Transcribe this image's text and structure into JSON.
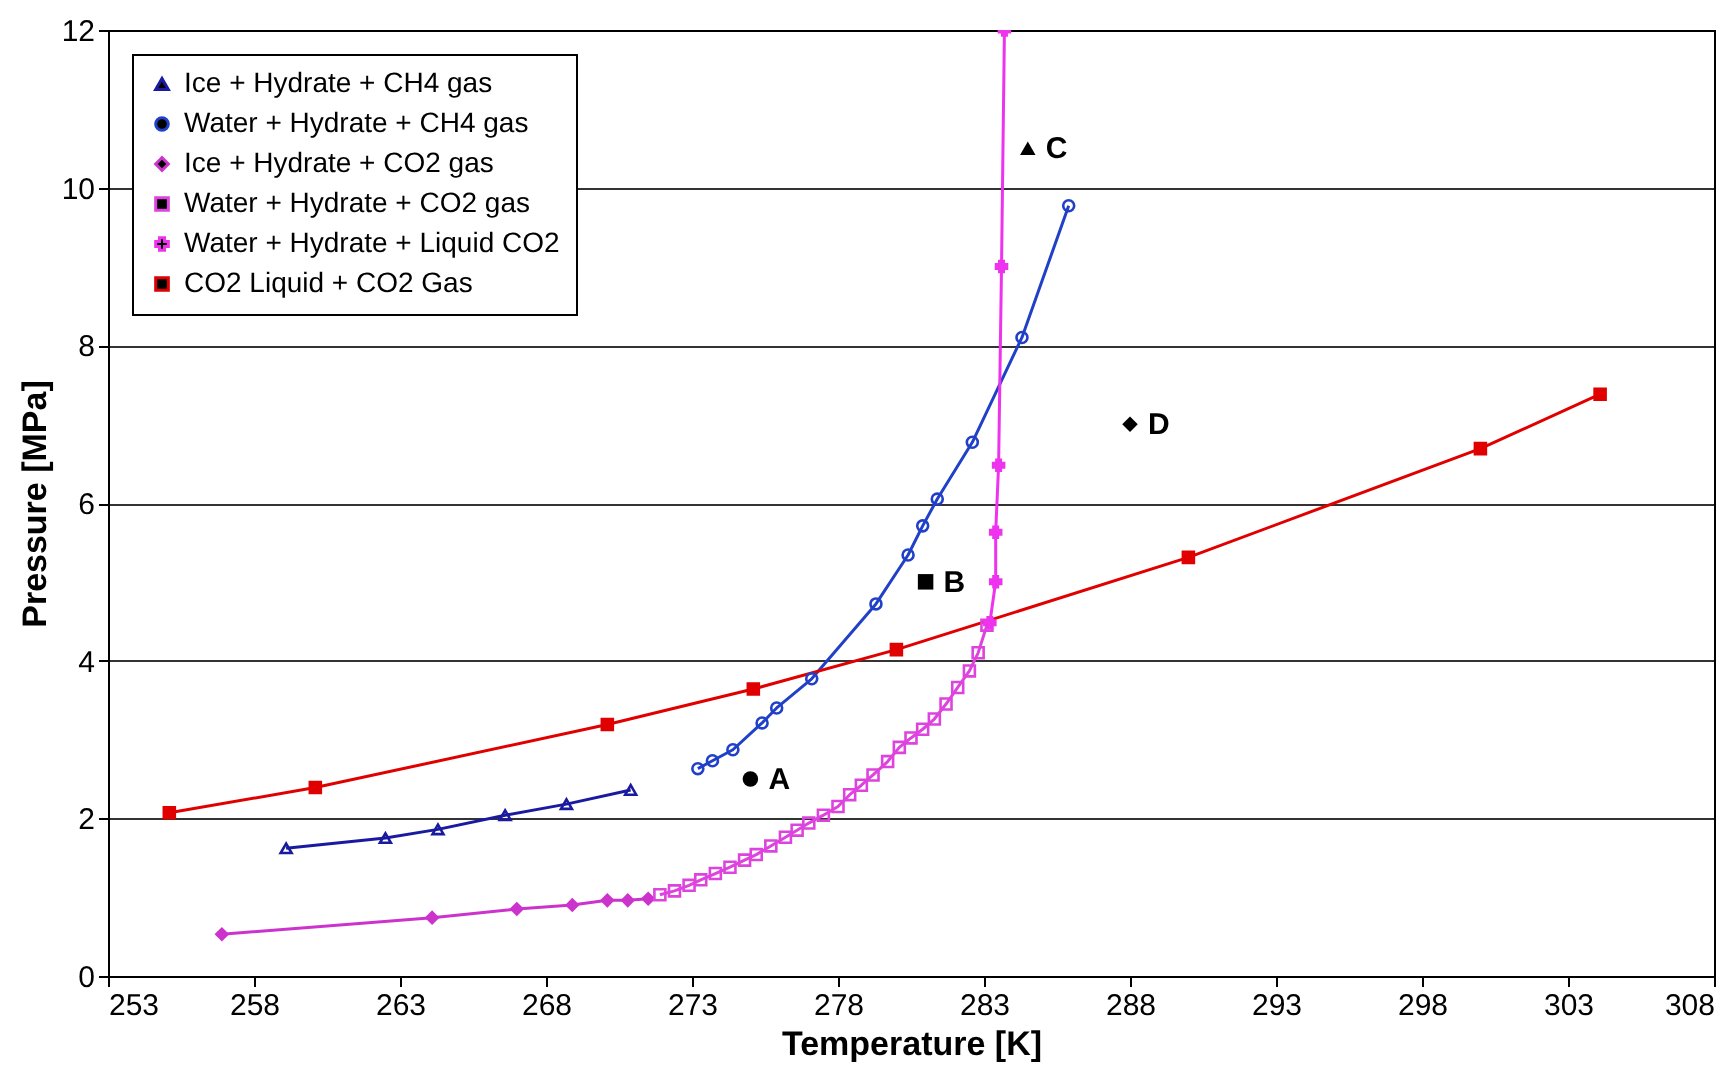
{
  "chart_data": {
    "type": "line",
    "xlabel": "Temperature [K]",
    "ylabel": "Pressure [MPa]",
    "xlim": [
      253,
      308
    ],
    "xticks": [
      253,
      258,
      263,
      268,
      273,
      278,
      283,
      288,
      293,
      298,
      303,
      308
    ],
    "ylim": [
      0,
      12
    ],
    "yticks": [
      0,
      2,
      4,
      6,
      8,
      10,
      12
    ],
    "grid": "y",
    "legend": "top left",
    "line_style": "solid",
    "series": [
      {
        "name": "Ice + Hydrate + CH4 gas",
        "color": "#1a1aa0",
        "marker": "triangle",
        "x": [
          259.1,
          262.5,
          264.3,
          266.6,
          268.7,
          270.9
        ],
        "values": [
          1.62,
          1.75,
          1.86,
          2.04,
          2.18,
          2.36
        ]
      },
      {
        "name": "Water + Hydrate + CH4 gas",
        "color": "#2040c8",
        "marker": "circle",
        "x": [
          273.2,
          273.7,
          274.4,
          275.4,
          275.9,
          277.1,
          279.3,
          280.4,
          280.9,
          281.4,
          282.6,
          284.3,
          285.9
        ],
        "values": [
          2.63,
          2.73,
          2.87,
          3.21,
          3.4,
          3.77,
          4.72,
          5.34,
          5.71,
          6.05,
          6.77,
          8.1,
          9.77
        ]
      },
      {
        "name": "Ice + Hydrate + CO2 gas",
        "color": "#cc33cc",
        "marker": "diamond",
        "x": [
          256.9,
          264.1,
          267.0,
          268.9,
          270.1,
          270.8,
          271.5
        ],
        "values": [
          0.53,
          0.74,
          0.85,
          0.9,
          0.96,
          0.96,
          0.98
        ]
      },
      {
        "name": "Water + Hydrate + CO2 gas",
        "color": "#dd44dd",
        "marker": "square",
        "x": [
          271.9,
          272.4,
          272.9,
          273.3,
          273.8,
          274.3,
          274.8,
          275.2,
          275.7,
          276.2,
          276.6,
          277.0,
          277.5,
          278.0,
          278.4,
          278.8,
          279.2,
          279.7,
          280.1,
          280.5,
          280.9,
          281.3,
          281.7,
          282.1,
          282.5,
          282.8,
          283.1
        ],
        "values": [
          1.03,
          1.08,
          1.15,
          1.22,
          1.3,
          1.38,
          1.47,
          1.54,
          1.65,
          1.76,
          1.85,
          1.94,
          2.04,
          2.15,
          2.3,
          2.42,
          2.55,
          2.72,
          2.9,
          3.02,
          3.13,
          3.26,
          3.45,
          3.66,
          3.87,
          4.1,
          4.45
        ]
      },
      {
        "name": "Water + Hydrate + Liquid CO2",
        "color": "#ee33ee",
        "marker": "cross",
        "x": [
          283.2,
          283.4,
          283.4,
          283.5,
          283.6,
          283.7
        ],
        "values": [
          4.48,
          5.0,
          5.63,
          6.48,
          9.0,
          12.0
        ]
      },
      {
        "name": "CO2 Liquid + CO2 Gas",
        "color": "#e00000",
        "marker": "square",
        "x": [
          255.1,
          260.1,
          270.1,
          275.1,
          280.0,
          290.0,
          300.0,
          304.1
        ],
        "values": [
          2.07,
          2.39,
          3.19,
          3.64,
          4.14,
          5.31,
          6.69,
          7.38
        ]
      },
      {
        "name": "A",
        "type": "scatter",
        "color": "#000000",
        "marker": "circle",
        "x": [
          275.0
        ],
        "values": [
          2.5
        ]
      },
      {
        "name": "B",
        "type": "scatter",
        "color": "#000000",
        "marker": "square",
        "x": [
          281.0
        ],
        "values": [
          5.0
        ]
      },
      {
        "name": "C",
        "type": "scatter",
        "color": "#000000",
        "marker": "triangle",
        "x": [
          284.5
        ],
        "values": [
          10.5
        ]
      },
      {
        "name": "D",
        "type": "scatter",
        "color": "#000000",
        "marker": "diamond",
        "x": [
          288.0
        ],
        "values": [
          7.0
        ]
      }
    ]
  }
}
